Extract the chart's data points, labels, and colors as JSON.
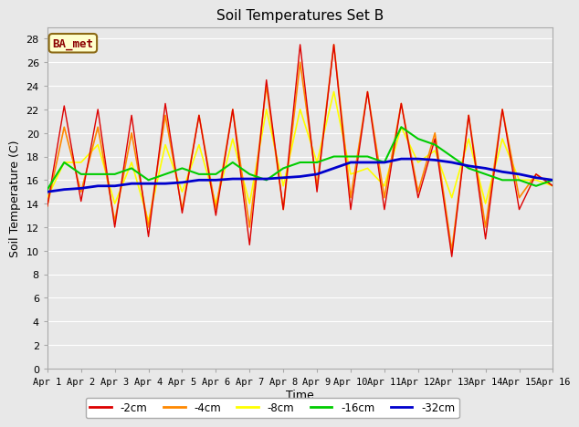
{
  "title": "Soil Temperatures Set B",
  "xlabel": "Time",
  "ylabel": "Soil Temperature (C)",
  "annotation": "BA_met",
  "xlim": [
    0,
    15
  ],
  "ylim": [
    0,
    29
  ],
  "yticks": [
    0,
    2,
    4,
    6,
    8,
    10,
    12,
    14,
    16,
    18,
    20,
    22,
    24,
    26,
    28
  ],
  "xtick_labels": [
    "Apr 1",
    "Apr 2",
    "Apr 3",
    "Apr 4",
    "Apr 5",
    "Apr 6",
    "Apr 7",
    "Apr 8",
    "Apr 9",
    "Apr 10",
    "Apr 11",
    "Apr 12",
    "Apr 13",
    "Apr 14",
    "Apr 15",
    "Apr 16"
  ],
  "legend_labels": [
    "-2cm",
    "-4cm",
    "-8cm",
    "-16cm",
    "-32cm"
  ],
  "legend_colors": [
    "#dd0000",
    "#ff8800",
    "#ffff00",
    "#00cc00",
    "#0000cc"
  ],
  "line_widths": [
    1.0,
    1.2,
    1.2,
    1.5,
    2.0
  ],
  "background_color": "#e8e8e8",
  "plot_bg_color": "#e8e8e8",
  "grid_color": "#ffffff",
  "series": {
    "cm2": {
      "x": [
        0.0,
        0.5,
        1.0,
        1.5,
        2.0,
        2.5,
        3.0,
        3.5,
        4.0,
        4.5,
        5.0,
        5.5,
        6.0,
        6.5,
        7.0,
        7.5,
        8.0,
        8.5,
        9.0,
        9.5,
        10.0,
        10.5,
        11.0,
        11.5,
        12.0,
        12.5,
        13.0,
        13.5,
        14.0,
        14.5,
        15.0
      ],
      "y": [
        13.8,
        22.3,
        14.2,
        22.0,
        12.0,
        21.5,
        11.2,
        22.5,
        13.2,
        21.5,
        13.0,
        22.0,
        10.5,
        24.5,
        13.5,
        27.5,
        15.0,
        27.5,
        13.5,
        23.5,
        13.5,
        22.5,
        14.5,
        19.5,
        9.5,
        21.5,
        11.0,
        22.0,
        13.5,
        16.5,
        15.5
      ]
    },
    "cm4": {
      "x": [
        0.0,
        0.5,
        1.0,
        1.5,
        2.0,
        2.5,
        3.0,
        3.5,
        4.0,
        4.5,
        5.0,
        5.5,
        6.0,
        6.5,
        7.0,
        7.5,
        8.0,
        8.5,
        9.0,
        9.5,
        10.0,
        10.5,
        11.0,
        11.5,
        12.0,
        12.5,
        13.0,
        13.5,
        14.0,
        14.5,
        15.0
      ],
      "y": [
        13.8,
        20.5,
        15.0,
        20.5,
        12.5,
        20.0,
        12.0,
        21.5,
        13.5,
        21.5,
        13.5,
        22.0,
        12.0,
        24.0,
        13.5,
        26.0,
        15.5,
        27.5,
        14.5,
        23.5,
        14.5,
        22.5,
        15.0,
        20.0,
        10.0,
        21.5,
        12.0,
        22.0,
        14.5,
        16.5,
        15.5
      ]
    },
    "cm8": {
      "x": [
        0.0,
        0.5,
        1.0,
        1.5,
        2.0,
        2.5,
        3.0,
        3.5,
        4.0,
        4.5,
        5.0,
        5.5,
        6.0,
        6.5,
        7.0,
        7.5,
        8.0,
        8.5,
        9.0,
        9.5,
        10.0,
        10.5,
        11.0,
        11.5,
        12.0,
        12.5,
        13.0,
        13.5,
        14.0,
        14.5,
        15.0
      ],
      "y": [
        14.5,
        17.5,
        17.5,
        19.0,
        14.0,
        17.5,
        12.5,
        19.0,
        15.0,
        19.0,
        14.0,
        19.5,
        14.0,
        22.0,
        15.5,
        22.0,
        17.5,
        23.5,
        16.5,
        17.0,
        15.5,
        20.5,
        17.5,
        18.5,
        14.5,
        19.5,
        14.0,
        19.5,
        16.0,
        16.0,
        15.5
      ]
    },
    "cm16": {
      "x": [
        0.0,
        0.5,
        1.0,
        1.5,
        2.0,
        2.5,
        3.0,
        3.5,
        4.0,
        4.5,
        5.0,
        5.5,
        6.0,
        6.5,
        7.0,
        7.5,
        8.0,
        8.5,
        9.0,
        9.5,
        10.0,
        10.5,
        11.0,
        11.5,
        12.0,
        12.5,
        13.0,
        13.5,
        14.0,
        14.5,
        15.0
      ],
      "y": [
        15.2,
        17.5,
        16.5,
        16.5,
        16.5,
        17.0,
        16.0,
        16.5,
        17.0,
        16.5,
        16.5,
        17.5,
        16.5,
        16.0,
        17.0,
        17.5,
        17.5,
        18.0,
        18.0,
        18.0,
        17.5,
        20.5,
        19.5,
        19.0,
        18.0,
        17.0,
        16.5,
        16.0,
        16.0,
        15.5,
        16.0
      ]
    },
    "cm32": {
      "x": [
        0.0,
        0.5,
        1.0,
        1.5,
        2.0,
        2.5,
        3.0,
        3.5,
        4.0,
        4.5,
        5.0,
        5.5,
        6.0,
        6.5,
        7.0,
        7.5,
        8.0,
        8.5,
        9.0,
        9.5,
        10.0,
        10.5,
        11.0,
        11.5,
        12.0,
        12.5,
        13.0,
        13.5,
        14.0,
        14.5,
        15.0
      ],
      "y": [
        15.0,
        15.2,
        15.3,
        15.5,
        15.5,
        15.7,
        15.7,
        15.7,
        15.8,
        16.0,
        16.0,
        16.1,
        16.1,
        16.1,
        16.2,
        16.3,
        16.5,
        17.0,
        17.5,
        17.5,
        17.5,
        17.8,
        17.8,
        17.7,
        17.5,
        17.2,
        17.0,
        16.7,
        16.5,
        16.2,
        16.0
      ]
    }
  }
}
